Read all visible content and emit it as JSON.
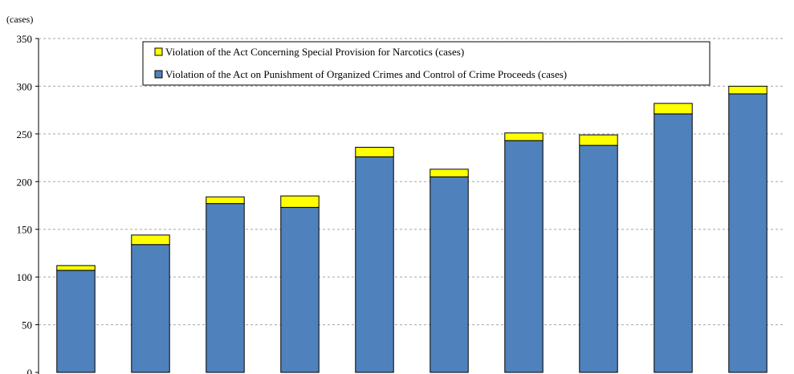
{
  "chart_data": {
    "type": "bar",
    "stacked": true,
    "ylabel": "(cases)",
    "ylim": [
      0,
      350
    ],
    "yticks": [
      0,
      50,
      100,
      150,
      200,
      250,
      300,
      350
    ],
    "grid": true,
    "legend": "top-center",
    "series": [
      {
        "name": "Violation of the Act on Punishment of Organized Crimes and Control of Crime Proceeds (cases)",
        "color": "#4f81bd",
        "values": [
          107,
          134,
          177,
          173,
          226,
          205,
          243,
          238,
          271,
          292
        ]
      },
      {
        "name": "Violation of the Act Concerning Special Provision for Narcotics (cases)",
        "color": "#ffff00",
        "values": [
          5,
          10,
          7,
          12,
          10,
          8,
          8,
          11,
          11,
          8
        ]
      }
    ]
  }
}
